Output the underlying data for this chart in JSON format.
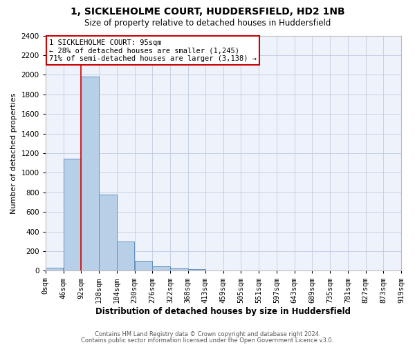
{
  "title": "1, SICKLEHOLME COURT, HUDDERSFIELD, HD2 1NB",
  "subtitle": "Size of property relative to detached houses in Huddersfield",
  "xlabel": "Distribution of detached houses by size in Huddersfield",
  "ylabel": "Number of detached properties",
  "bin_edges": [
    0,
    46,
    92,
    138,
    184,
    230,
    276,
    322,
    368,
    413,
    459,
    505,
    551,
    597,
    643,
    689,
    735,
    781,
    827,
    873,
    919
  ],
  "bin_labels": [
    "0sqm",
    "46sqm",
    "92sqm",
    "138sqm",
    "184sqm",
    "230sqm",
    "276sqm",
    "322sqm",
    "368sqm",
    "413sqm",
    "459sqm",
    "505sqm",
    "551sqm",
    "597sqm",
    "643sqm",
    "689sqm",
    "735sqm",
    "781sqm",
    "827sqm",
    "873sqm",
    "919sqm"
  ],
  "bar_heights": [
    30,
    1140,
    1980,
    780,
    300,
    100,
    45,
    25,
    20,
    5,
    3,
    0,
    0,
    0,
    0,
    0,
    0,
    0,
    0,
    0
  ],
  "bar_color": "#b8cfe8",
  "bar_edge_color": "#6090c0",
  "ylim": [
    0,
    2400
  ],
  "yticks": [
    0,
    200,
    400,
    600,
    800,
    1000,
    1200,
    1400,
    1600,
    1800,
    2000,
    2200,
    2400
  ],
  "property_line_x": 92,
  "property_line_color": "#cc0000",
  "annotation_line1": "1 SICKLEHOLME COURT: 95sqm",
  "annotation_line2": "← 28% of detached houses are smaller (1,245)",
  "annotation_line3": "71% of semi-detached houses are larger (3,138) →",
  "annotation_box_color": "white",
  "annotation_box_edge": "#cc0000",
  "footer1": "Contains HM Land Registry data © Crown copyright and database right 2024.",
  "footer2": "Contains public sector information licensed under the Open Government Licence v3.0.",
  "bg_color": "#eef2fa",
  "grid_color": "#c0cce0",
  "title_fontsize": 10,
  "subtitle_fontsize": 8.5,
  "ylabel_fontsize": 8,
  "xlabel_fontsize": 8.5,
  "tick_fontsize": 7.5,
  "annot_fontsize": 7.5,
  "footer_fontsize": 6
}
